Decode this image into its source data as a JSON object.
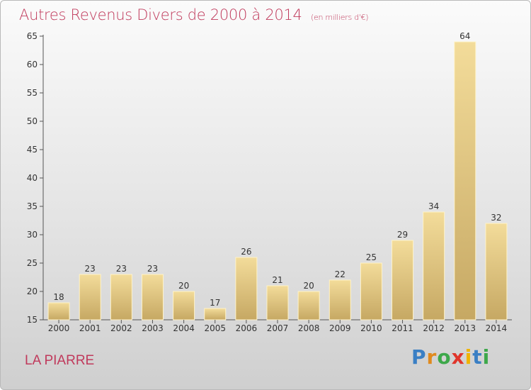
{
  "header": {
    "title": "Autres Revenus Divers de 2000 à 2014",
    "subtitle": "(en milliers d'€)"
  },
  "footer": {
    "location": "LA PIARRE",
    "brand_letters": [
      "P",
      "r",
      "o",
      "x",
      "i",
      "t",
      "i"
    ],
    "brand_colors": [
      "#3a7fc4",
      "#e08a1e",
      "#3da84a",
      "#e0352b",
      "#f0b400",
      "#3a7fc4",
      "#3da84a"
    ]
  },
  "chart_data": {
    "type": "bar",
    "categories": [
      "2000",
      "2001",
      "2002",
      "2003",
      "2004",
      "2005",
      "2006",
      "2007",
      "2008",
      "2009",
      "2010",
      "2011",
      "2012",
      "2013",
      "2014"
    ],
    "values": [
      18,
      23,
      23,
      23,
      20,
      17,
      26,
      21,
      20,
      22,
      25,
      29,
      34,
      64,
      32
    ],
    "ylim": [
      15,
      65
    ],
    "yticks": [
      15,
      20,
      25,
      30,
      35,
      40,
      45,
      50,
      55,
      60,
      65
    ],
    "grid": false,
    "bar_color_top": "#f3dc9a",
    "bar_color_bottom": "#c6a863",
    "bar_edge_color": "#fff3c8"
  }
}
